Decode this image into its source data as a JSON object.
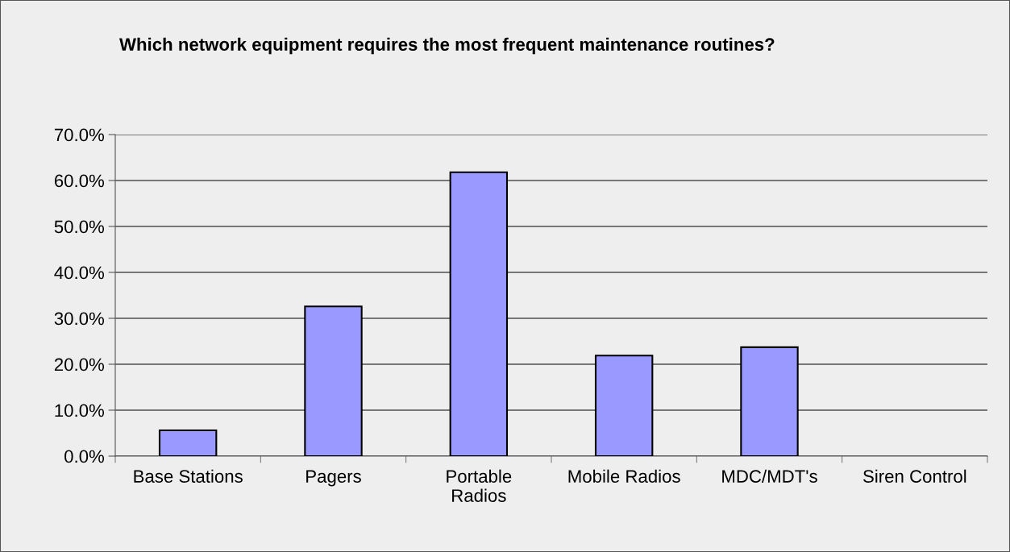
{
  "chart_data": {
    "type": "bar",
    "title": "Which network equipment requires the most frequent maintenance routines?",
    "categories": [
      "Base Stations",
      "Pagers",
      "Portable\nRadios",
      "Mobile Radios",
      "MDC/MDT's",
      "Siren Control"
    ],
    "values": [
      5.6,
      32.6,
      61.8,
      21.9,
      23.7,
      0
    ],
    "color": "#9999ff",
    "ylim": [
      0,
      70
    ],
    "yticks": [
      {
        "value": 0,
        "label": "0.0%"
      },
      {
        "value": 10,
        "label": "10.0%"
      },
      {
        "value": 20,
        "label": "20.0%"
      },
      {
        "value": 30,
        "label": "30.0%"
      },
      {
        "value": 40,
        "label": "40.0%"
      },
      {
        "value": 50,
        "label": "50.0%"
      },
      {
        "value": 60,
        "label": "60.0%"
      },
      {
        "value": 70,
        "label": "70.0%"
      }
    ],
    "grid": "y",
    "legend": false
  }
}
